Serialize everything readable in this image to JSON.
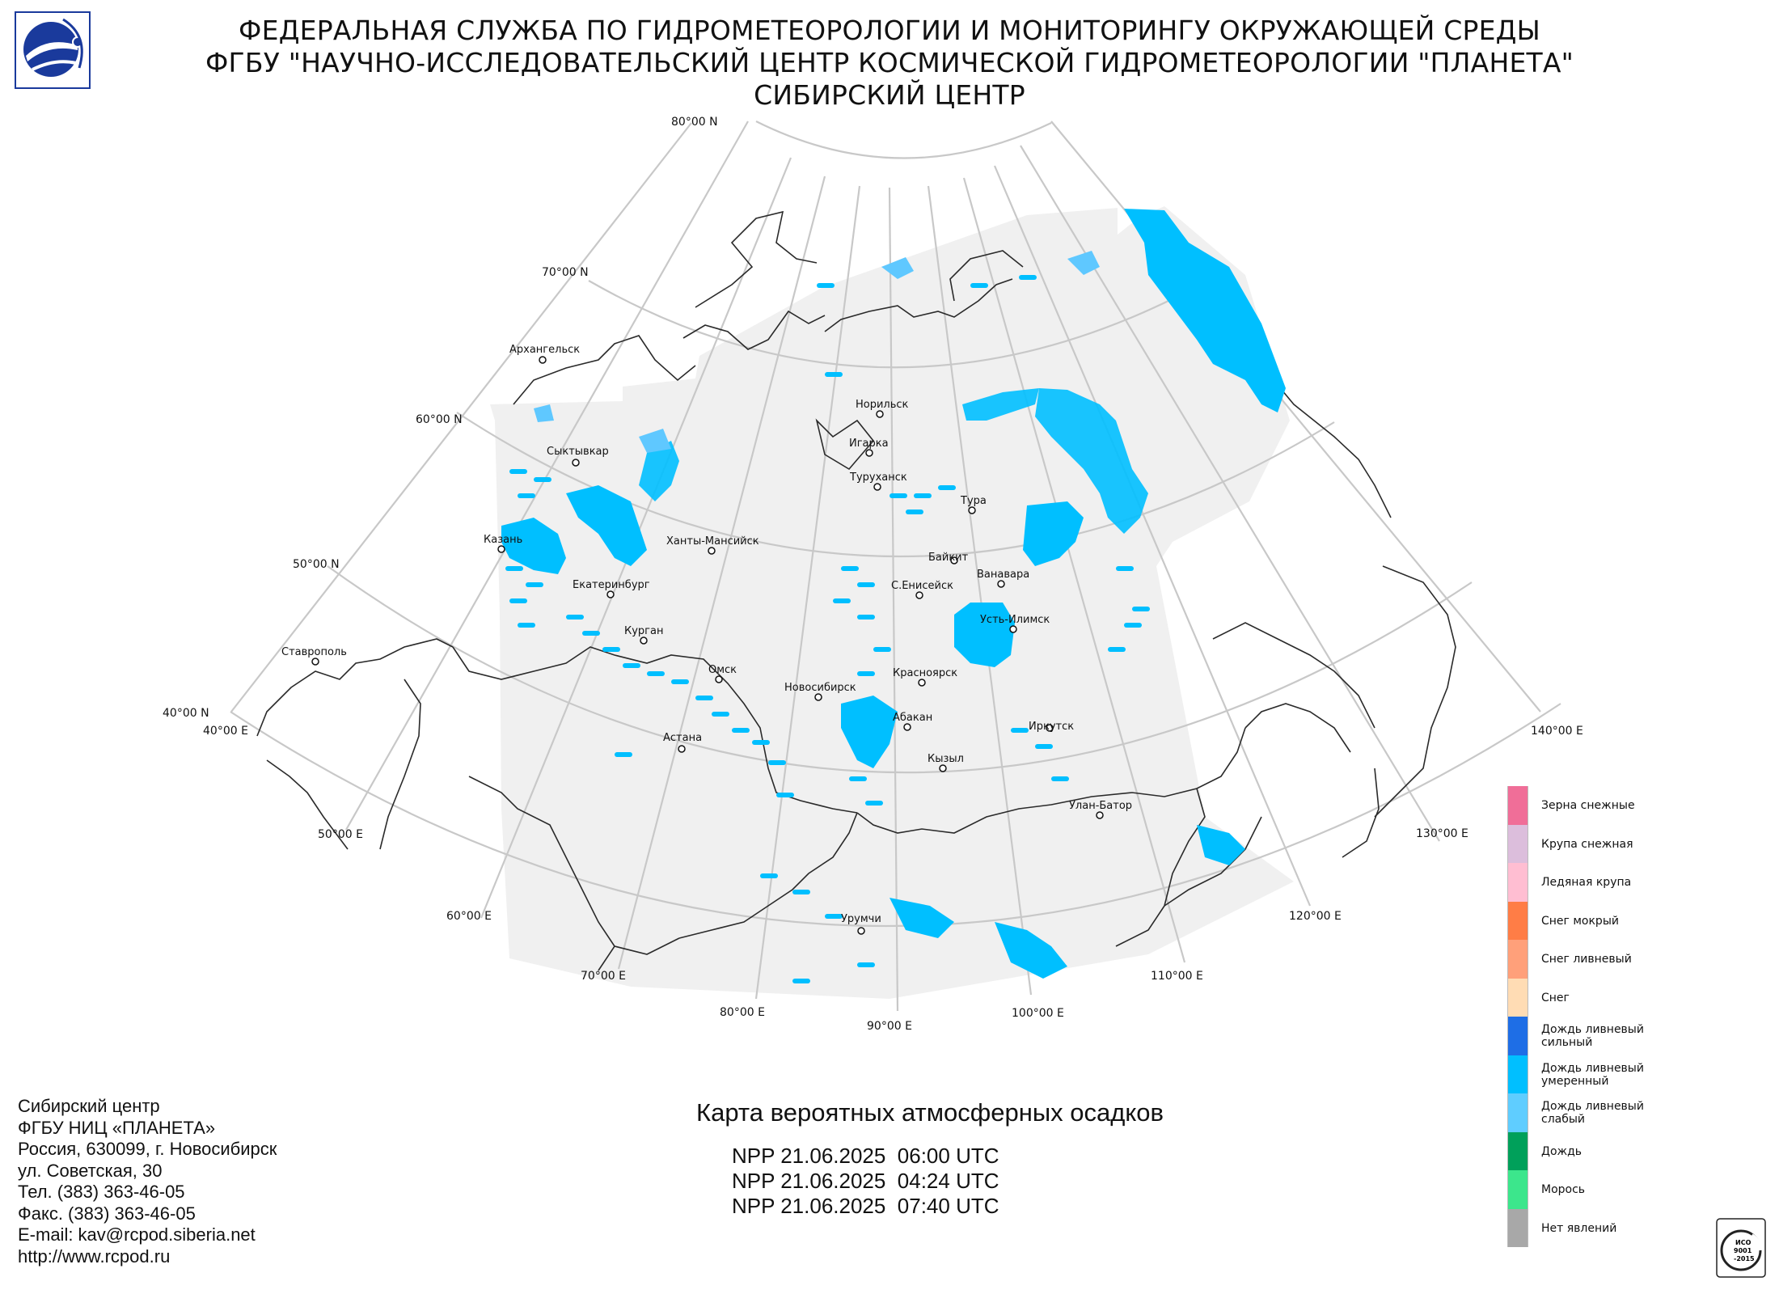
{
  "header": {
    "line1": "ФЕДЕРАЛЬНАЯ СЛУЖБА ПО ГИДРОМЕТЕОРОЛОГИИ И МОНИТОРИНГУ ОКРУЖАЮЩЕЙ СРЕДЫ",
    "line2": "ФГБУ \"НАУЧНО-ИССЛЕДОВАТЕЛЬСКИЙ ЦЕНТР КОСМИЧЕСКОЙ ГИДРОМЕТЕОРОЛОГИИ \"ПЛАНЕТА\"",
    "line3": "СИБИРСКИЙ ЦЕНТР"
  },
  "map": {
    "title": "Карта вероятных атмосферных осадков",
    "passes": [
      "NPP 21.06.2025  06:00 UTC",
      "NPP 21.06.2025  04:24 UTC",
      "NPP 21.06.2025  07:40 UTC"
    ],
    "lat_labels": {
      "lat80": "80°00 N",
      "lat70": "70°00 N",
      "lat60": "60°00 N",
      "lat50": "50°00 N",
      "lat40": "40°00 N"
    },
    "lon_labels": {
      "lon40": "40°00 E",
      "lon50": "50°00 E",
      "lon60": "60°00 E",
      "lon70": "70°00 E",
      "lon80": "80°00 E",
      "lon90": "90°00 E",
      "lon100": "100°00 E",
      "lon110": "110°00 E",
      "lon120": "120°00 E",
      "lon130": "130°00 E",
      "lon140": "140°00 E"
    },
    "cities": {
      "arkhangelsk": "Архангельск",
      "norilsk": "Норильск",
      "igarka": "Игарка",
      "turukhansk": "Туруханск",
      "syktyvkar": "Сыктывкар",
      "tura": "Тура",
      "kazan": "Казань",
      "khanty": "Ханты-Мансийск",
      "baikit": "Байкит",
      "vanavara": "Ванавара",
      "yeniseisk": "С.Енисейск",
      "ekaterinburg": "Екатеринбург",
      "ustilimsk": "Усть-Илимск",
      "kurgan": "Курган",
      "stavropol": "Ставрополь",
      "omsk": "Омск",
      "krasnoyarsk": "Красноярск",
      "novosibirsk": "Новосибирск",
      "abakan": "Абакан",
      "irkutsk": "Иркутск",
      "astana": "Астана",
      "kyzyl": "Кызыл",
      "ulanbator": "Улан-Батор",
      "urumqi": "Урумчи"
    },
    "colors": {
      "land_bg": "#f0f0f0",
      "grid": "#c8c8c8",
      "border": "#2a2a2a",
      "rain_moderate": "#00bfff",
      "rain_light": "#5fc8ff"
    }
  },
  "legend": {
    "items": [
      {
        "label": "Зерна снежные",
        "color": "#f06e98"
      },
      {
        "label": "Крупа снежная",
        "color": "#dcbedc"
      },
      {
        "label": "Ледяная крупа",
        "color": "#ffbed2"
      },
      {
        "label": "Снег мокрый",
        "color": "#ff7d46"
      },
      {
        "label": "Снег ливневый",
        "color": "#ffa07a"
      },
      {
        "label": "Снег",
        "color": "#ffdcb4"
      },
      {
        "label": "Дождь ливневый сильный",
        "color": "#1e6ee6"
      },
      {
        "label": "Дождь ливневый умеренный",
        "color": "#00bfff"
      },
      {
        "label": "Дождь ливневый слабый",
        "color": "#5fcdff"
      },
      {
        "label": "Дождь",
        "color": "#00a05a"
      },
      {
        "label": "Морось",
        "color": "#3ce68c"
      },
      {
        "label": "Нет явлений",
        "color": "#a8a8a8"
      }
    ]
  },
  "contacts": {
    "l1": "Сибирский центр",
    "l2": "ФГБУ НИЦ «ПЛАНЕТА»",
    "l3": "Россия, 630099, г. Новосибирск",
    "l4": "ул. Советская, 30",
    "l5": "Тел. (383) 363-46-05",
    "l6": "Факс. (383) 363-46-05",
    "l7": "E-mail: kav@rcpod.siberia.net",
    "l8": "http://www.rcpod.ru"
  },
  "iso": {
    "l1": "ИСО",
    "l2": "9001",
    "l3": "-2015"
  }
}
